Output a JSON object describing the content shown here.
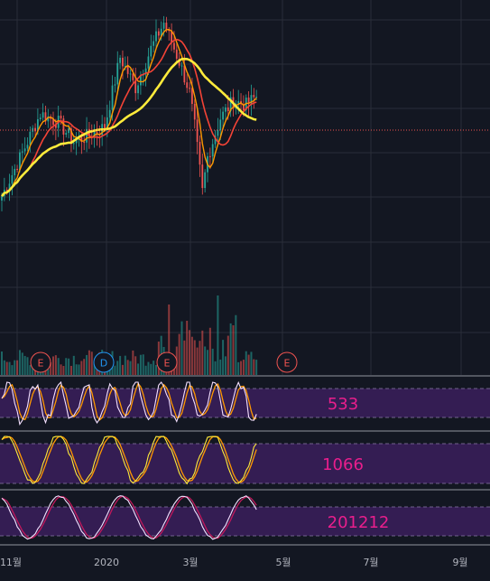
{
  "colors": {
    "background": "#131722",
    "grid": "#2a2e39",
    "up_candle": "#26a69a",
    "down_candle": "#ef5350",
    "ma_fast": "#ff9800",
    "ma_mid": "#f44336",
    "ma_slow": "#ffeb3b",
    "price_line": "#ef5350",
    "osc_band": "#3b1f5c",
    "osc_label": "#e91e8c",
    "stoch_k": "#f5e0ff",
    "stoch_d": "#ff9800",
    "separator": "#787b86",
    "axis_text": "#b2b5be",
    "earnings_marker": "#ef5350",
    "dividend_marker": "#2196f3"
  },
  "x_axis": {
    "tick_labels": [
      "11월",
      "2020",
      "3월",
      "5월",
      "7월",
      "9월"
    ]
  },
  "event_markers": [
    {
      "label": "E",
      "type": "earnings"
    },
    {
      "label": "D",
      "type": "dividend"
    },
    {
      "label": "E",
      "type": "earnings"
    },
    {
      "label": "E",
      "type": "earnings"
    }
  ],
  "chart_data": [
    {
      "type": "candlestick",
      "x_range": [
        "2019-10",
        "2020-09"
      ],
      "price_levels": "relative",
      "moving_averages": [
        {
          "color": "ma_fast"
        },
        {
          "color": "ma_mid"
        },
        {
          "color": "ma_slow"
        }
      ],
      "volume": true,
      "grid": true
    },
    {
      "type": "line",
      "indicator": "stochastic",
      "label": "533"
    },
    {
      "type": "line",
      "indicator": "stochastic",
      "label": "1066"
    },
    {
      "type": "line",
      "indicator": "stochastic",
      "label": "201212"
    }
  ]
}
